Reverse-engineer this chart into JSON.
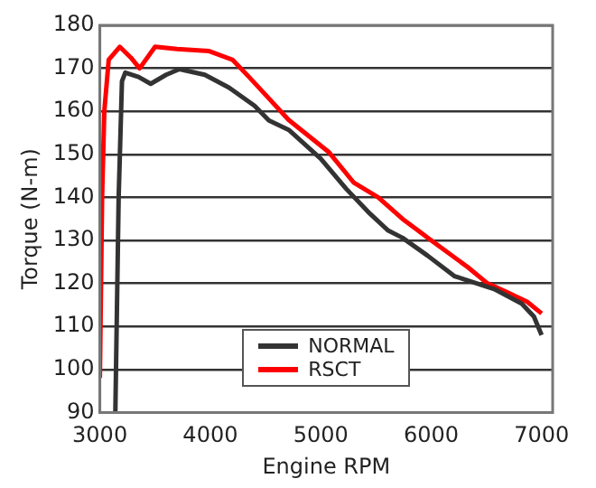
{
  "chart_data": {
    "type": "line",
    "xlabel": "Engine RPM",
    "ylabel": "Torque (N-m)",
    "xlim": [
      3000,
      7100
    ],
    "xticks": [
      3000,
      4000,
      5000,
      6000,
      7000
    ],
    "ylim": [
      90,
      180
    ],
    "yticks": [
      90,
      100,
      110,
      120,
      130,
      140,
      150,
      160,
      170,
      180
    ],
    "grid": "y",
    "legend": "bottom",
    "marker": "none",
    "line_style": "solid",
    "series": [
      {
        "name": "NORMAL",
        "color": "#333333",
        "x": [
          3140,
          3170,
          3200,
          3230,
          3350,
          3460,
          3600,
          3720,
          3950,
          4170,
          4400,
          4530,
          4710,
          5000,
          5230,
          5430,
          5610,
          5740,
          5970,
          6210,
          6570,
          6820,
          6930,
          7000
        ],
        "values": [
          90,
          140,
          167,
          169,
          168,
          166.4,
          168.5,
          169.8,
          168.5,
          165.5,
          161.3,
          157.9,
          155.7,
          149,
          142,
          136.6,
          132.3,
          130.6,
          126.4,
          121.7,
          118.7,
          115.3,
          112.3,
          108
        ]
      },
      {
        "name": "RSCT",
        "color": "#ff0000",
        "x": [
          3000,
          3020,
          3040,
          3080,
          3180,
          3280,
          3360,
          3500,
          3700,
          3990,
          4200,
          4350,
          4530,
          4710,
          5070,
          5300,
          5520,
          5740,
          5970,
          6330,
          6510,
          6690,
          6870,
          7000
        ],
        "values": [
          98,
          140,
          160,
          172,
          175,
          172.5,
          170,
          175,
          174.5,
          174,
          172,
          168,
          163,
          158,
          150.6,
          143.4,
          140,
          135,
          130.6,
          123.8,
          120,
          117.9,
          115.7,
          113
        ]
      }
    ]
  }
}
